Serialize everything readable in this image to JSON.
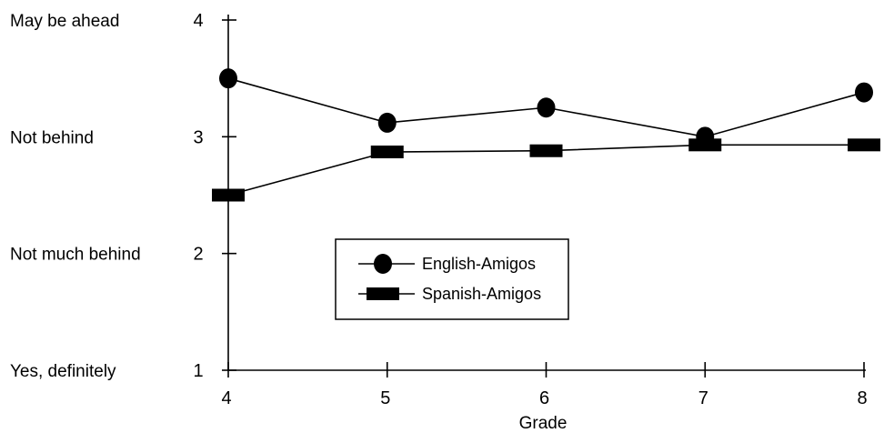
{
  "chart_data": {
    "type": "line",
    "title": "",
    "xlabel": "Grade",
    "ylabel": "",
    "x": [
      4,
      5,
      6,
      7,
      8
    ],
    "xlim": [
      4,
      8
    ],
    "ylim": [
      1,
      4
    ],
    "y_ticks": [
      1,
      2,
      3,
      4
    ],
    "y_category_labels": [
      {
        "value": 4,
        "label": "May be ahead"
      },
      {
        "value": 3,
        "label": "Not behind"
      },
      {
        "value": 2,
        "label": "Not much behind"
      },
      {
        "value": 1,
        "label": "Yes, definitely"
      }
    ],
    "grid": false,
    "legend_position": "center",
    "series": [
      {
        "name": "English-Amigos",
        "marker": "circle",
        "color": "#000000",
        "values": [
          3.5,
          3.12,
          3.25,
          3.0,
          3.38
        ]
      },
      {
        "name": "Spanish-Amigos",
        "marker": "rectangle",
        "color": "#000000",
        "values": [
          2.5,
          2.87,
          2.88,
          2.93,
          2.93
        ]
      }
    ]
  }
}
